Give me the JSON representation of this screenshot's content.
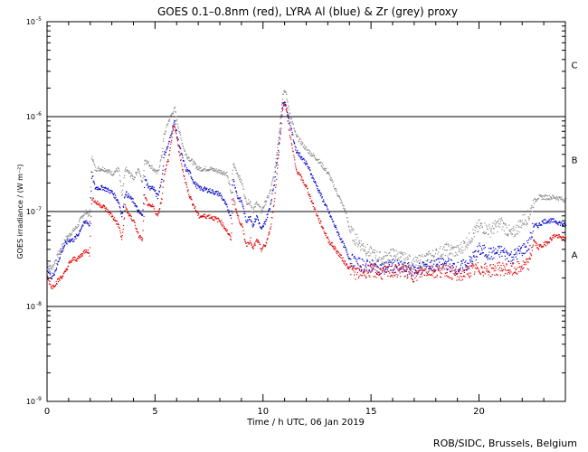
{
  "chart_data": {
    "type": "scatter",
    "title": "GOES 0.1–0.8nm (red), LYRA Al (blue) & Zr (grey) proxy",
    "xlabel": "Time / h UTC, 06 Jan 2019",
    "ylabel": "GOES irradiance / (W m⁻²)",
    "xlim": [
      0,
      24
    ],
    "ylim_log10": [
      -9,
      -5
    ],
    "x_ticks": [
      {
        "value": 0,
        "label": "0"
      },
      {
        "value": 5,
        "label": "5"
      },
      {
        "value": 10,
        "label": "10"
      },
      {
        "value": 15,
        "label": "15"
      },
      {
        "value": 20,
        "label": "20"
      }
    ],
    "y_ticks": [
      {
        "exp": -5,
        "base": "10",
        "sup": "-5"
      },
      {
        "exp": -6,
        "base": "10",
        "sup": "-6"
      },
      {
        "exp": -7,
        "base": "10",
        "sup": "-7"
      },
      {
        "exp": -8,
        "base": "10",
        "sup": "-8"
      },
      {
        "exp": -9,
        "base": "10",
        "sup": "-9"
      }
    ],
    "flare_levels": [
      {
        "exp": -6,
        "label": "C",
        "label_exp": -5.45
      },
      {
        "exp": -7,
        "label": "B",
        "label_exp": -6.45
      },
      {
        "exp": -8,
        "label": "A",
        "label_exp": -7.45
      }
    ],
    "series": [
      {
        "name": "GOES 0.1–0.8nm",
        "color": "#e00000",
        "x": [
          0,
          0.2,
          0.4,
          0.6,
          0.8,
          1.0,
          1.2,
          1.4,
          1.6,
          1.8,
          1.95,
          2.05,
          2.2,
          2.6,
          3.0,
          3.3,
          3.45,
          3.6,
          3.8,
          4.0,
          4.2,
          4.4,
          4.5,
          4.7,
          4.9,
          5.1,
          5.3,
          5.4,
          5.6,
          5.8,
          5.9,
          6.0,
          6.2,
          6.4,
          6.6,
          6.8,
          7.0,
          7.5,
          8.0,
          8.3,
          8.5,
          8.6,
          8.8,
          9.0,
          9.2,
          9.4,
          9.5,
          9.7,
          9.9,
          10.1,
          10.3,
          10.5,
          10.7,
          10.9,
          11.0,
          11.2,
          11.5,
          12.0,
          12.5,
          13.0,
          13.5,
          13.8,
          14.0,
          14.3,
          15.0,
          15.5,
          16.0,
          16.5,
          17.0,
          17.5,
          18.0,
          18.5,
          19.0,
          19.5,
          20.0,
          20.5,
          21.0,
          21.5,
          22.0,
          22.3,
          22.5,
          22.7,
          23.0,
          23.5,
          24.0
        ],
        "y_log10": [
          -7.7,
          -7.8,
          -7.75,
          -7.7,
          -7.65,
          -7.55,
          -7.5,
          -7.5,
          -7.45,
          -7.4,
          -7.45,
          -6.85,
          -6.9,
          -6.95,
          -7.05,
          -7.15,
          -7.3,
          -6.95,
          -7.05,
          -7.1,
          -7.25,
          -7.3,
          -6.85,
          -6.95,
          -6.95,
          -7.05,
          -6.85,
          -6.6,
          -6.45,
          -6.15,
          -6.1,
          -6.25,
          -6.5,
          -6.7,
          -6.85,
          -6.95,
          -7.05,
          -7.05,
          -7.1,
          -7.2,
          -7.3,
          -6.85,
          -7.05,
          -7.15,
          -7.35,
          -7.3,
          -7.4,
          -7.3,
          -7.4,
          -7.35,
          -7.2,
          -6.9,
          -6.4,
          -5.9,
          -5.85,
          -6.15,
          -6.55,
          -6.75,
          -7.05,
          -7.3,
          -7.45,
          -7.55,
          -7.6,
          -7.65,
          -7.62,
          -7.65,
          -7.63,
          -7.62,
          -7.68,
          -7.62,
          -7.63,
          -7.62,
          -7.68,
          -7.63,
          -7.6,
          -7.62,
          -7.6,
          -7.62,
          -7.58,
          -7.55,
          -7.3,
          -7.38,
          -7.35,
          -7.25,
          -7.3
        ]
      },
      {
        "name": "LYRA Al",
        "color": "#0000c8",
        "x": [
          0,
          0.2,
          0.4,
          0.6,
          0.8,
          1.0,
          1.2,
          1.4,
          1.6,
          1.8,
          1.95,
          2.05,
          2.2,
          2.6,
          3.0,
          3.3,
          3.45,
          3.6,
          3.8,
          4.0,
          4.2,
          4.4,
          4.5,
          4.7,
          4.9,
          5.1,
          5.3,
          5.4,
          5.6,
          5.8,
          5.9,
          6.0,
          6.2,
          6.4,
          6.6,
          6.8,
          7.0,
          7.5,
          8.0,
          8.3,
          8.5,
          8.6,
          8.8,
          9.0,
          9.2,
          9.4,
          9.5,
          9.7,
          9.9,
          10.1,
          10.3,
          10.5,
          10.7,
          10.9,
          11.0,
          11.2,
          11.5,
          12.0,
          12.5,
          13.0,
          13.5,
          13.8,
          14.0,
          14.3,
          15.0,
          15.5,
          16.0,
          16.5,
          17.0,
          17.5,
          18.0,
          18.5,
          19.0,
          19.5,
          20.0,
          20.5,
          21.0,
          21.5,
          22.0,
          22.3,
          22.5,
          22.7,
          23.0,
          23.5,
          24.0
        ],
        "y_log10": [
          -7.6,
          -7.7,
          -7.6,
          -7.45,
          -7.35,
          -7.3,
          -7.3,
          -7.25,
          -7.15,
          -7.1,
          -7.15,
          -6.6,
          -6.75,
          -6.75,
          -6.8,
          -6.9,
          -7.05,
          -6.8,
          -6.85,
          -6.9,
          -7.0,
          -7.05,
          -6.65,
          -6.75,
          -6.75,
          -6.85,
          -6.65,
          -6.4,
          -6.3,
          -6.1,
          -6.05,
          -6.2,
          -6.4,
          -6.55,
          -6.6,
          -6.7,
          -6.75,
          -6.78,
          -6.82,
          -6.95,
          -7.05,
          -6.65,
          -6.85,
          -6.9,
          -7.1,
          -7.05,
          -7.15,
          -7.05,
          -7.2,
          -7.1,
          -6.95,
          -6.7,
          -6.3,
          -5.85,
          -5.85,
          -6.05,
          -6.35,
          -6.5,
          -6.75,
          -7.0,
          -7.25,
          -7.4,
          -7.5,
          -7.55,
          -7.58,
          -7.6,
          -7.57,
          -7.6,
          -7.62,
          -7.58,
          -7.57,
          -7.55,
          -7.6,
          -7.55,
          -7.4,
          -7.45,
          -7.42,
          -7.48,
          -7.4,
          -7.35,
          -7.15,
          -7.15,
          -7.1,
          -7.1,
          -7.15
        ]
      },
      {
        "name": "LYRA Zr",
        "color": "#8c8c8c",
        "x": [
          0,
          0.2,
          0.4,
          0.6,
          0.8,
          1.0,
          1.2,
          1.4,
          1.6,
          1.8,
          1.95,
          2.05,
          2.2,
          2.6,
          3.0,
          3.3,
          3.45,
          3.6,
          3.8,
          4.0,
          4.2,
          4.4,
          4.5,
          4.7,
          4.9,
          5.1,
          5.3,
          5.4,
          5.6,
          5.8,
          5.9,
          6.0,
          6.2,
          6.4,
          6.6,
          6.8,
          7.0,
          7.5,
          8.0,
          8.3,
          8.5,
          8.6,
          8.8,
          9.0,
          9.2,
          9.4,
          9.5,
          9.7,
          9.9,
          10.1,
          10.3,
          10.5,
          10.7,
          10.9,
          11.0,
          11.2,
          11.5,
          12.0,
          12.5,
          13.0,
          13.5,
          13.8,
          14.0,
          14.3,
          15.0,
          15.5,
          16.0,
          16.5,
          17.0,
          17.5,
          18.0,
          18.5,
          19.0,
          19.5,
          20.0,
          20.5,
          21.0,
          21.5,
          22.0,
          22.3,
          22.5,
          22.7,
          23.0,
          23.5,
          24.0
        ],
        "y_log10": [
          -7.55,
          -7.6,
          -7.5,
          -7.4,
          -7.3,
          -7.25,
          -7.2,
          -7.15,
          -7.05,
          -7.0,
          -7.05,
          -6.4,
          -6.55,
          -6.55,
          -6.6,
          -6.55,
          -6.85,
          -6.55,
          -6.6,
          -6.65,
          -6.55,
          -6.7,
          -6.45,
          -6.5,
          -6.55,
          -6.6,
          -6.4,
          -6.2,
          -6.05,
          -5.95,
          -5.92,
          -6.05,
          -6.25,
          -6.4,
          -6.45,
          -6.5,
          -6.55,
          -6.55,
          -6.58,
          -6.6,
          -6.8,
          -6.5,
          -6.6,
          -6.7,
          -6.9,
          -6.9,
          -7.0,
          -6.9,
          -7.0,
          -6.9,
          -6.8,
          -6.6,
          -6.2,
          -5.75,
          -5.72,
          -5.95,
          -6.2,
          -6.35,
          -6.45,
          -6.6,
          -6.85,
          -7.0,
          -7.2,
          -7.3,
          -7.45,
          -7.5,
          -7.45,
          -7.5,
          -7.55,
          -7.5,
          -7.45,
          -7.4,
          -7.42,
          -7.3,
          -7.15,
          -7.2,
          -7.12,
          -7.25,
          -7.1,
          -7.05,
          -6.9,
          -6.85,
          -6.85,
          -6.85,
          -6.88
        ]
      }
    ]
  },
  "footer": {
    "credit": "ROB/SIDC, Brussels, Belgium"
  }
}
